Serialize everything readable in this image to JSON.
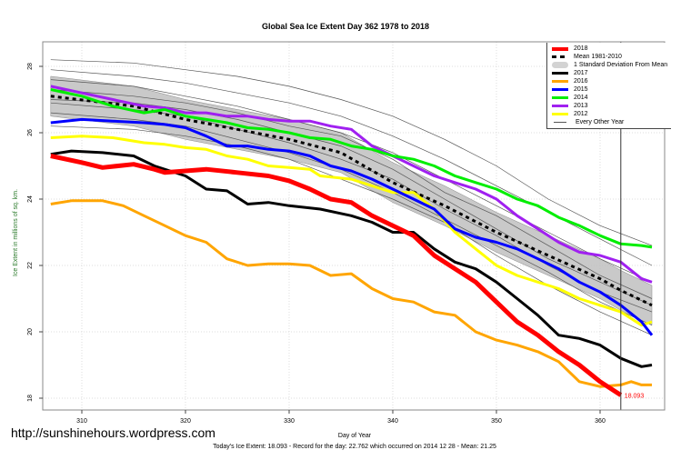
{
  "chart_data": {
    "type": "line",
    "title": "Global Sea Ice Extent Day 362 1978 to 2018",
    "xlabel": "Day of Year",
    "ylabel": "Ice Extent in millions of sq. km.",
    "xlim": [
      306,
      366
    ],
    "ylim": [
      17.7,
      28.7
    ],
    "xticks": [
      310,
      320,
      330,
      340,
      350,
      360
    ],
    "yticks": [
      18,
      20,
      22,
      24,
      26,
      28
    ],
    "grid": true,
    "legend_position": "top-right",
    "current_day_marker": 362,
    "end_label": "18.093",
    "series": [
      {
        "name": "2018",
        "color": "#ff0000",
        "width": 5,
        "x": [
          307,
          310,
          312,
          315,
          317,
          318,
          320,
          322,
          325,
          328,
          330,
          332,
          334,
          336,
          338,
          340,
          342,
          344,
          346,
          348,
          350,
          352,
          354,
          356,
          358,
          360,
          362
        ],
        "y": [
          25.3,
          25.1,
          24.95,
          25.05,
          24.9,
          24.8,
          24.85,
          24.9,
          24.8,
          24.7,
          24.55,
          24.3,
          24.0,
          23.9,
          23.5,
          23.2,
          22.9,
          22.3,
          21.9,
          21.5,
          20.9,
          20.3,
          19.9,
          19.4,
          19.0,
          18.5,
          18.093
        ]
      },
      {
        "name": "2017",
        "color": "#000000",
        "width": 3,
        "x": [
          307,
          309,
          312,
          315,
          317,
          320,
          322,
          324,
          326,
          328,
          330,
          333,
          336,
          338,
          340,
          342,
          344,
          346,
          348,
          350,
          352,
          354,
          356,
          358,
          360,
          362,
          364,
          365
        ],
        "y": [
          25.35,
          25.45,
          25.4,
          25.3,
          25.0,
          24.7,
          24.3,
          24.25,
          23.85,
          23.9,
          23.8,
          23.7,
          23.5,
          23.3,
          23.0,
          23.0,
          22.5,
          22.1,
          21.9,
          21.5,
          21.0,
          20.5,
          19.9,
          19.8,
          19.6,
          19.2,
          18.95,
          19.0
        ]
      },
      {
        "name": "2016",
        "color": "#ffa500",
        "width": 3,
        "x": [
          307,
          309,
          312,
          314,
          316,
          318,
          320,
          322,
          324,
          326,
          328,
          330,
          332,
          334,
          336,
          338,
          340,
          342,
          344,
          346,
          348,
          350,
          352,
          354,
          356,
          357,
          358,
          360,
          362,
          363,
          364,
          365
        ],
        "y": [
          23.85,
          23.95,
          23.95,
          23.8,
          23.5,
          23.2,
          22.9,
          22.7,
          22.2,
          22.0,
          22.05,
          22.05,
          22.0,
          21.7,
          21.75,
          21.3,
          21.0,
          20.9,
          20.6,
          20.5,
          20.0,
          19.75,
          19.6,
          19.4,
          19.1,
          18.8,
          18.5,
          18.35,
          18.4,
          18.5,
          18.4,
          18.4
        ]
      },
      {
        "name": "2015",
        "color": "#0000ff",
        "width": 3,
        "x": [
          307,
          310,
          313,
          316,
          318,
          320,
          322,
          324,
          326,
          328,
          330,
          332,
          334,
          336,
          338,
          340,
          342,
          344,
          346,
          348,
          350,
          352,
          354,
          356,
          358,
          360,
          362,
          364,
          365
        ],
        "y": [
          26.3,
          26.4,
          26.35,
          26.3,
          26.25,
          26.15,
          25.9,
          25.6,
          25.6,
          25.5,
          25.45,
          25.3,
          25.0,
          24.85,
          24.6,
          24.3,
          24.0,
          23.7,
          23.1,
          22.85,
          22.7,
          22.5,
          22.2,
          21.9,
          21.5,
          21.2,
          20.8,
          20.3,
          19.9
        ]
      },
      {
        "name": "2014",
        "color": "#00ee00",
        "width": 3,
        "x": [
          307,
          310,
          313,
          316,
          318,
          320,
          322,
          324,
          326,
          328,
          330,
          332,
          334,
          336,
          338,
          340,
          342,
          344,
          346,
          348,
          350,
          352,
          354,
          356,
          358,
          360,
          362,
          364,
          365
        ],
        "y": [
          27.3,
          27.1,
          26.8,
          26.6,
          26.7,
          26.5,
          26.4,
          26.3,
          26.15,
          26.1,
          26.0,
          25.85,
          25.8,
          25.6,
          25.5,
          25.3,
          25.2,
          25.0,
          24.7,
          24.5,
          24.3,
          24.0,
          23.8,
          23.45,
          23.2,
          22.9,
          22.65,
          22.6,
          22.55
        ]
      },
      {
        "name": "2013",
        "color": "#a020f0",
        "width": 3,
        "x": [
          307,
          310,
          313,
          316,
          318,
          320,
          322,
          324,
          326,
          328,
          330,
          332,
          334,
          336,
          338,
          340,
          342,
          344,
          346,
          348,
          350,
          352,
          354,
          356,
          358,
          360,
          362,
          364,
          365
        ],
        "y": [
          27.4,
          27.2,
          27.0,
          26.8,
          26.75,
          26.6,
          26.6,
          26.5,
          26.5,
          26.4,
          26.35,
          26.35,
          26.2,
          26.1,
          25.6,
          25.3,
          25.0,
          24.7,
          24.5,
          24.3,
          24.0,
          23.5,
          23.1,
          22.7,
          22.4,
          22.3,
          22.1,
          21.6,
          21.5
        ]
      },
      {
        "name": "2012",
        "color": "#ffff00",
        "width": 3,
        "x": [
          307,
          310,
          313,
          316,
          318,
          320,
          322,
          324,
          326,
          328,
          330,
          332,
          333,
          336,
          338,
          340,
          342,
          344,
          346,
          348,
          350,
          352,
          354,
          356,
          358,
          360,
          362,
          364,
          365
        ],
        "y": [
          25.85,
          25.9,
          25.85,
          25.7,
          25.65,
          25.55,
          25.5,
          25.3,
          25.2,
          25.0,
          24.95,
          24.9,
          24.7,
          24.6,
          24.4,
          24.2,
          24.2,
          23.7,
          23.0,
          22.5,
          22.0,
          21.7,
          21.5,
          21.3,
          21.0,
          20.8,
          20.6,
          20.2,
          20.3
        ]
      }
    ],
    "mean": {
      "name": "Mean 1981-2010",
      "x": [
        307,
        315,
        320,
        325,
        330,
        335,
        340,
        345,
        350,
        355,
        360,
        362,
        365
      ],
      "y": [
        27.1,
        26.8,
        26.4,
        26.1,
        25.8,
        25.4,
        24.5,
        23.8,
        23.0,
        22.3,
        21.6,
        21.25,
        20.8
      ],
      "sd": 0.6,
      "sd_name": "1 Standard Deviation From Mean",
      "band_color": "#c0c0c0"
    },
    "other_years": {
      "name": "Every Other Year",
      "color": "#555555",
      "x": [
        307,
        315,
        320,
        325,
        330,
        335,
        340,
        345,
        350,
        355,
        360,
        365
      ],
      "lines": [
        [
          28.2,
          28.1,
          27.9,
          27.7,
          27.4,
          27.0,
          26.5,
          25.8,
          25.0,
          24.0,
          23.2,
          22.6
        ],
        [
          27.9,
          27.7,
          27.5,
          27.2,
          26.9,
          26.5,
          25.9,
          25.2,
          24.4,
          23.6,
          22.8,
          22.0
        ],
        [
          27.6,
          27.4,
          27.1,
          26.8,
          26.4,
          26.0,
          25.4,
          24.6,
          23.8,
          23.0,
          22.2,
          21.5
        ],
        [
          26.9,
          26.7,
          26.5,
          26.1,
          25.7,
          25.2,
          24.6,
          23.7,
          22.9,
          22.0,
          21.2,
          20.6
        ],
        [
          26.6,
          26.4,
          26.2,
          25.8,
          25.4,
          24.9,
          24.2,
          23.4,
          22.6,
          21.8,
          20.9,
          20.2
        ],
        [
          26.2,
          26.1,
          25.9,
          25.6,
          25.2,
          24.6,
          24.0,
          23.3,
          22.3,
          21.4,
          20.6,
          19.9
        ],
        [
          27.3,
          27.1,
          26.9,
          26.6,
          26.2,
          25.9,
          25.2,
          24.2,
          23.5,
          22.6,
          21.7,
          21.0
        ],
        [
          27.0,
          26.9,
          26.7,
          26.4,
          26.0,
          25.6,
          24.9,
          24.0,
          23.1,
          22.2,
          21.5,
          20.8
        ]
      ]
    }
  },
  "legend": {
    "items": [
      "2018",
      "Mean 1981-2010",
      "1 Standard Deviation From Mean",
      "2017",
      "2016",
      "2015",
      "2014",
      "2013",
      "2012",
      "Every Other Year"
    ]
  },
  "footer": "Today's Ice Extent: 18.093  - Record for the day: 22.762 which occurred on 2014 12 28  - Mean: 21.25",
  "watermark": "http://sunshinehours.wordpress.com"
}
